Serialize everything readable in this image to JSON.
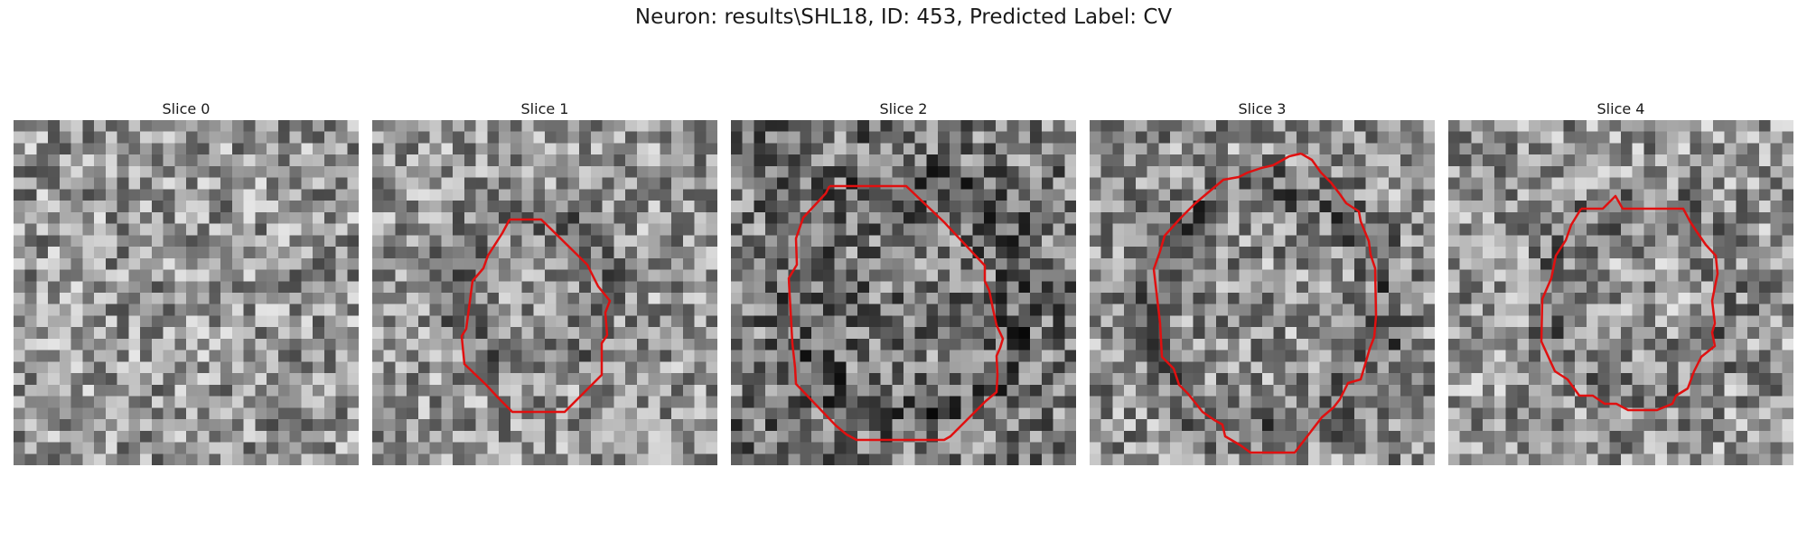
{
  "figure": {
    "title": "Neuron: results\\SHL18, ID: 453, Predicted Label: CV",
    "contour_color": "#e01010"
  },
  "panels": [
    {
      "title": "Slice 0",
      "has_contour": false
    },
    {
      "title": "Slice 1",
      "has_contour": true
    },
    {
      "title": "Slice 2",
      "has_contour": true
    },
    {
      "title": "Slice 3",
      "has_contour": true
    },
    {
      "title": "Slice 4",
      "has_contour": true
    }
  ]
}
